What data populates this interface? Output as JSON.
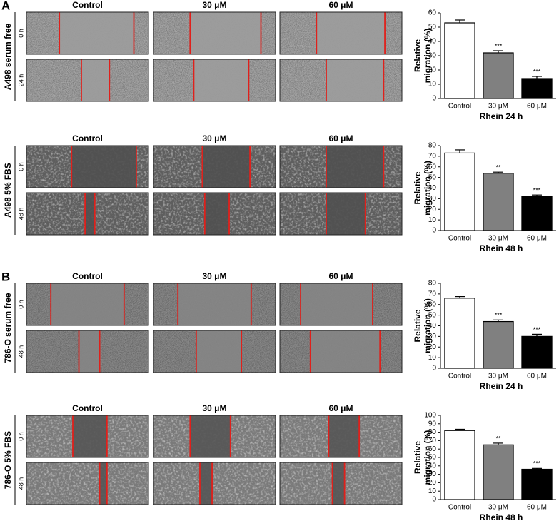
{
  "panels": [
    {
      "letter": "A",
      "label": "A498 serum free",
      "columns": [
        "Control",
        "30 μM",
        "60 μM"
      ],
      "rows": [
        "0 h",
        "24 h"
      ]
    },
    {
      "label": "A498 5% FBS",
      "columns": [
        "Control",
        "30 μM",
        "60 μM"
      ],
      "rows": [
        "0 h",
        "48 h"
      ]
    },
    {
      "letter": "B",
      "label": "786-O serum free",
      "columns": [
        "Control",
        "30 μM",
        "60 μM"
      ],
      "rows": [
        "0 h",
        "48 h"
      ]
    },
    {
      "label": "786-O 5% FBS",
      "columns": [
        "Control",
        "30 μM",
        "60 μM"
      ],
      "rows": [
        "0 h",
        "48 h"
      ]
    }
  ],
  "chart_data": [
    {
      "type": "bar",
      "ylabel": [
        "Relative",
        "migration (%)"
      ],
      "xlabel": "Rhein 24 h",
      "categories": [
        "Control",
        "30 μM",
        "60 μM"
      ],
      "values": [
        53,
        32,
        14
      ],
      "errors": [
        2,
        1.5,
        1.5
      ],
      "colors": [
        "#ffffff",
        "#808080",
        "#000000"
      ],
      "annotations": [
        null,
        "***",
        "***"
      ],
      "ylim": [
        0,
        60
      ],
      "yticks": [
        0,
        10,
        20,
        30,
        40,
        50,
        60
      ]
    },
    {
      "type": "bar",
      "ylabel": [
        "Relative",
        "migration (%)"
      ],
      "xlabel": "Rhein 48 h",
      "categories": [
        "Control",
        "30 μM",
        "60 μM"
      ],
      "values": [
        73,
        54,
        32
      ],
      "errors": [
        3,
        1,
        1.5
      ],
      "colors": [
        "#ffffff",
        "#808080",
        "#000000"
      ],
      "annotations": [
        null,
        "**",
        "***"
      ],
      "ylim": [
        0,
        80
      ],
      "yticks": [
        0,
        10,
        20,
        30,
        40,
        50,
        60,
        70,
        80
      ]
    },
    {
      "type": "bar",
      "ylabel": [
        "Relative",
        "migration (%)"
      ],
      "xlabel": "Rhein 24 h",
      "categories": [
        "Control",
        "30 μM",
        "60 μM"
      ],
      "values": [
        66,
        44,
        30
      ],
      "errors": [
        1.5,
        1.5,
        2
      ],
      "colors": [
        "#ffffff",
        "#808080",
        "#000000"
      ],
      "annotations": [
        null,
        "***",
        "***"
      ],
      "ylim": [
        0,
        80
      ],
      "yticks": [
        0,
        10,
        20,
        30,
        40,
        50,
        60,
        70,
        80
      ]
    },
    {
      "type": "bar",
      "ylabel": [
        "Relative",
        "migration (%)"
      ],
      "xlabel": "Rhein 48 h",
      "categories": [
        "Control",
        "30 μM",
        "60 μM"
      ],
      "values": [
        82,
        65,
        36
      ],
      "errors": [
        1.5,
        2,
        1
      ],
      "colors": [
        "#ffffff",
        "#808080",
        "#000000"
      ],
      "annotations": [
        null,
        "**",
        "***"
      ],
      "ylim": [
        0,
        100
      ],
      "yticks": [
        0,
        10,
        20,
        30,
        40,
        50,
        60,
        70,
        80,
        90,
        100
      ]
    }
  ]
}
